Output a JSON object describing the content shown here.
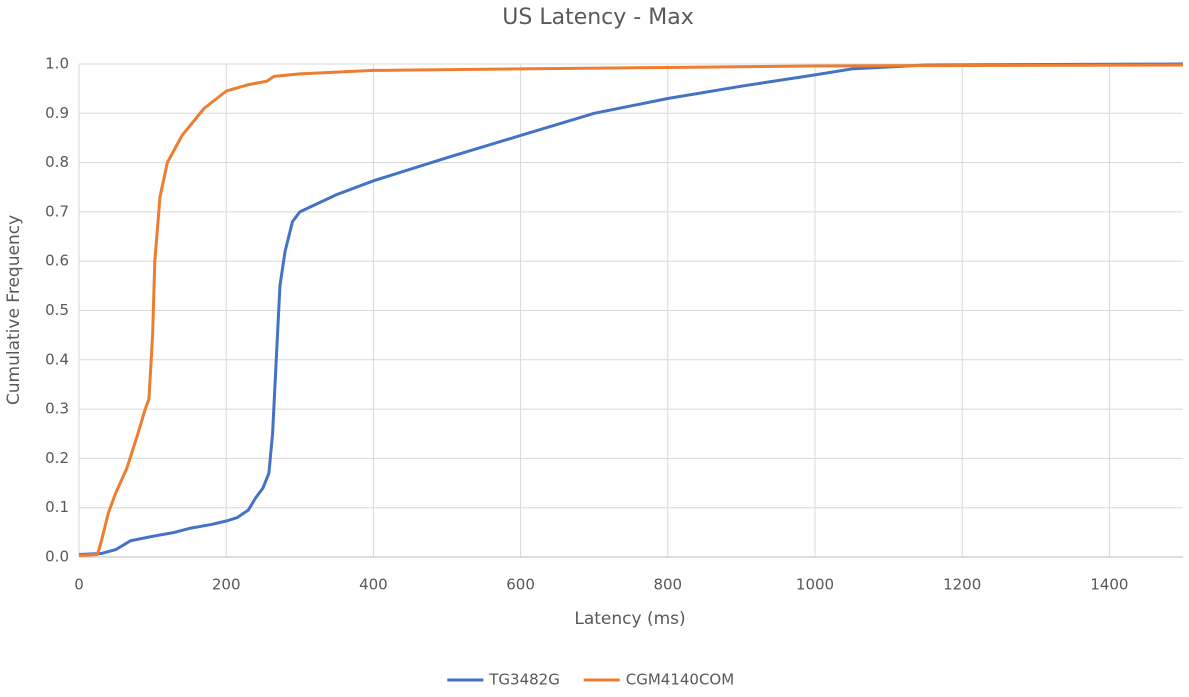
{
  "chart_data": {
    "type": "line",
    "title": "US Latency - Max",
    "x_label": "Latency (ms)",
    "y_label": "Cumulative Frequency",
    "xlim": [
      0,
      1500
    ],
    "xticks": [
      0,
      200,
      400,
      600,
      800,
      1000,
      1200,
      1400
    ],
    "ylim": [
      0,
      1
    ],
    "yticks": [
      {
        "value": 0,
        "label": "0.0"
      },
      0.1,
      0.2,
      0.3,
      0.4,
      0.5,
      0.6,
      0.7,
      0.8,
      0.9,
      {
        "value": 1,
        "label": "1.0"
      }
    ],
    "grid": true,
    "legend": "bottom",
    "series": [
      {
        "name": "TG3482G",
        "color": "#4472c4",
        "x": [
          0,
          30,
          50,
          70,
          100,
          130,
          150,
          180,
          200,
          215,
          230,
          240,
          250,
          258,
          263,
          268,
          273,
          280,
          290,
          300,
          350,
          400,
          500,
          600,
          700,
          800,
          900,
          1000,
          1050,
          1150,
          1500
        ],
        "values": [
          0.005,
          0.007,
          0.015,
          0.033,
          0.042,
          0.05,
          0.058,
          0.066,
          0.073,
          0.08,
          0.095,
          0.12,
          0.14,
          0.17,
          0.25,
          0.4,
          0.55,
          0.62,
          0.68,
          0.7,
          0.735,
          0.763,
          0.81,
          0.855,
          0.9,
          0.93,
          0.955,
          0.978,
          0.99,
          0.998,
          1.0
        ]
      },
      {
        "name": "CGM4140COM",
        "color": "#ed7d31",
        "x": [
          0,
          25,
          30,
          40,
          50,
          65,
          80,
          90,
          95,
          100,
          103,
          110,
          120,
          140,
          170,
          200,
          230,
          255,
          265,
          300,
          400,
          600,
          800,
          1000,
          1500
        ],
        "values": [
          0.003,
          0.005,
          0.03,
          0.09,
          0.13,
          0.18,
          0.25,
          0.3,
          0.32,
          0.45,
          0.6,
          0.73,
          0.8,
          0.855,
          0.91,
          0.945,
          0.958,
          0.965,
          0.975,
          0.98,
          0.987,
          0.99,
          0.993,
          0.996,
          0.998
        ]
      }
    ]
  }
}
